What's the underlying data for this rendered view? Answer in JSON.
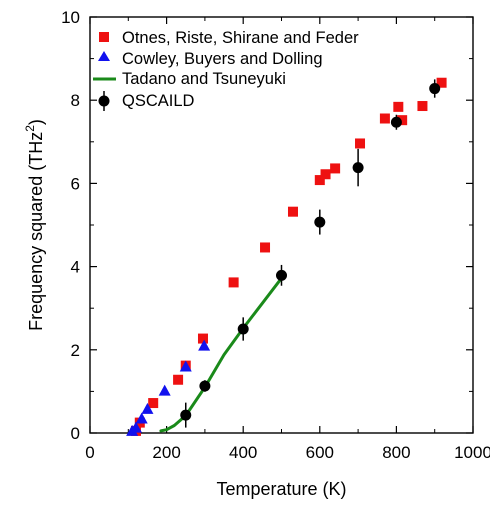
{
  "chart_data": {
    "type": "scatter",
    "xlabel": "Temperature (K)",
    "ylabel": "Frequency squared (THz",
    "ylabel_sup": "2",
    "ylabel_end": ")",
    "xlim": [
      0,
      1000
    ],
    "ylim": [
      0,
      10
    ],
    "xticks": [
      "0",
      "200",
      "400",
      "600",
      "800",
      "1000"
    ],
    "yticks": [
      "0",
      "2",
      "4",
      "6",
      "8",
      "10"
    ],
    "xtick_values": [
      0,
      200,
      400,
      600,
      800,
      1000
    ],
    "ytick_values": [
      0,
      2,
      4,
      6,
      8,
      10
    ],
    "legend_position": "top-right",
    "series": [
      {
        "name": "Otnes, Riste, Shirane and Feder",
        "marker": "square",
        "color": "#ee1111",
        "points": [
          [
            120,
            0.05
          ],
          [
            130,
            0.25
          ],
          [
            165,
            0.72
          ],
          [
            230,
            1.28
          ],
          [
            250,
            1.62
          ],
          [
            295,
            2.27
          ],
          [
            375,
            3.62
          ],
          [
            457,
            4.46
          ],
          [
            530,
            5.32
          ],
          [
            600,
            6.08
          ],
          [
            615,
            6.22
          ],
          [
            640,
            6.36
          ],
          [
            705,
            6.96
          ],
          [
            770,
            7.56
          ],
          [
            805,
            7.84
          ],
          [
            815,
            7.52
          ],
          [
            868,
            7.86
          ],
          [
            918,
            8.42
          ]
        ]
      },
      {
        "name": "Cowley, Buyers and Dolling",
        "marker": "triangle",
        "color": "#1111ee",
        "points": [
          [
            110,
            0.05
          ],
          [
            120,
            0.13
          ],
          [
            135,
            0.35
          ],
          [
            150,
            0.58
          ],
          [
            195,
            1.02
          ],
          [
            250,
            1.6
          ],
          [
            298,
            2.1
          ]
        ]
      },
      {
        "name": "Tadano and Tsuneyuki",
        "marker": "line",
        "color": "#1a8a1a",
        "points": [
          [
            185,
            0.05
          ],
          [
            200,
            0.08
          ],
          [
            220,
            0.18
          ],
          [
            250,
            0.42
          ],
          [
            300,
            1.1
          ],
          [
            350,
            1.88
          ],
          [
            400,
            2.52
          ],
          [
            450,
            3.12
          ],
          [
            500,
            3.72
          ]
        ]
      },
      {
        "name": "QSCAILD",
        "marker": "circle-errorbar",
        "color": "#000000",
        "points": [
          [
            250,
            0.43,
            0.3
          ],
          [
            300,
            1.13,
            0.14
          ],
          [
            400,
            2.5,
            0.28
          ],
          [
            500,
            3.79,
            0.25
          ],
          [
            600,
            5.07,
            0.3
          ],
          [
            700,
            6.38,
            0.45
          ],
          [
            800,
            7.47,
            0.18
          ],
          [
            900,
            8.28,
            0.22
          ]
        ]
      }
    ]
  }
}
